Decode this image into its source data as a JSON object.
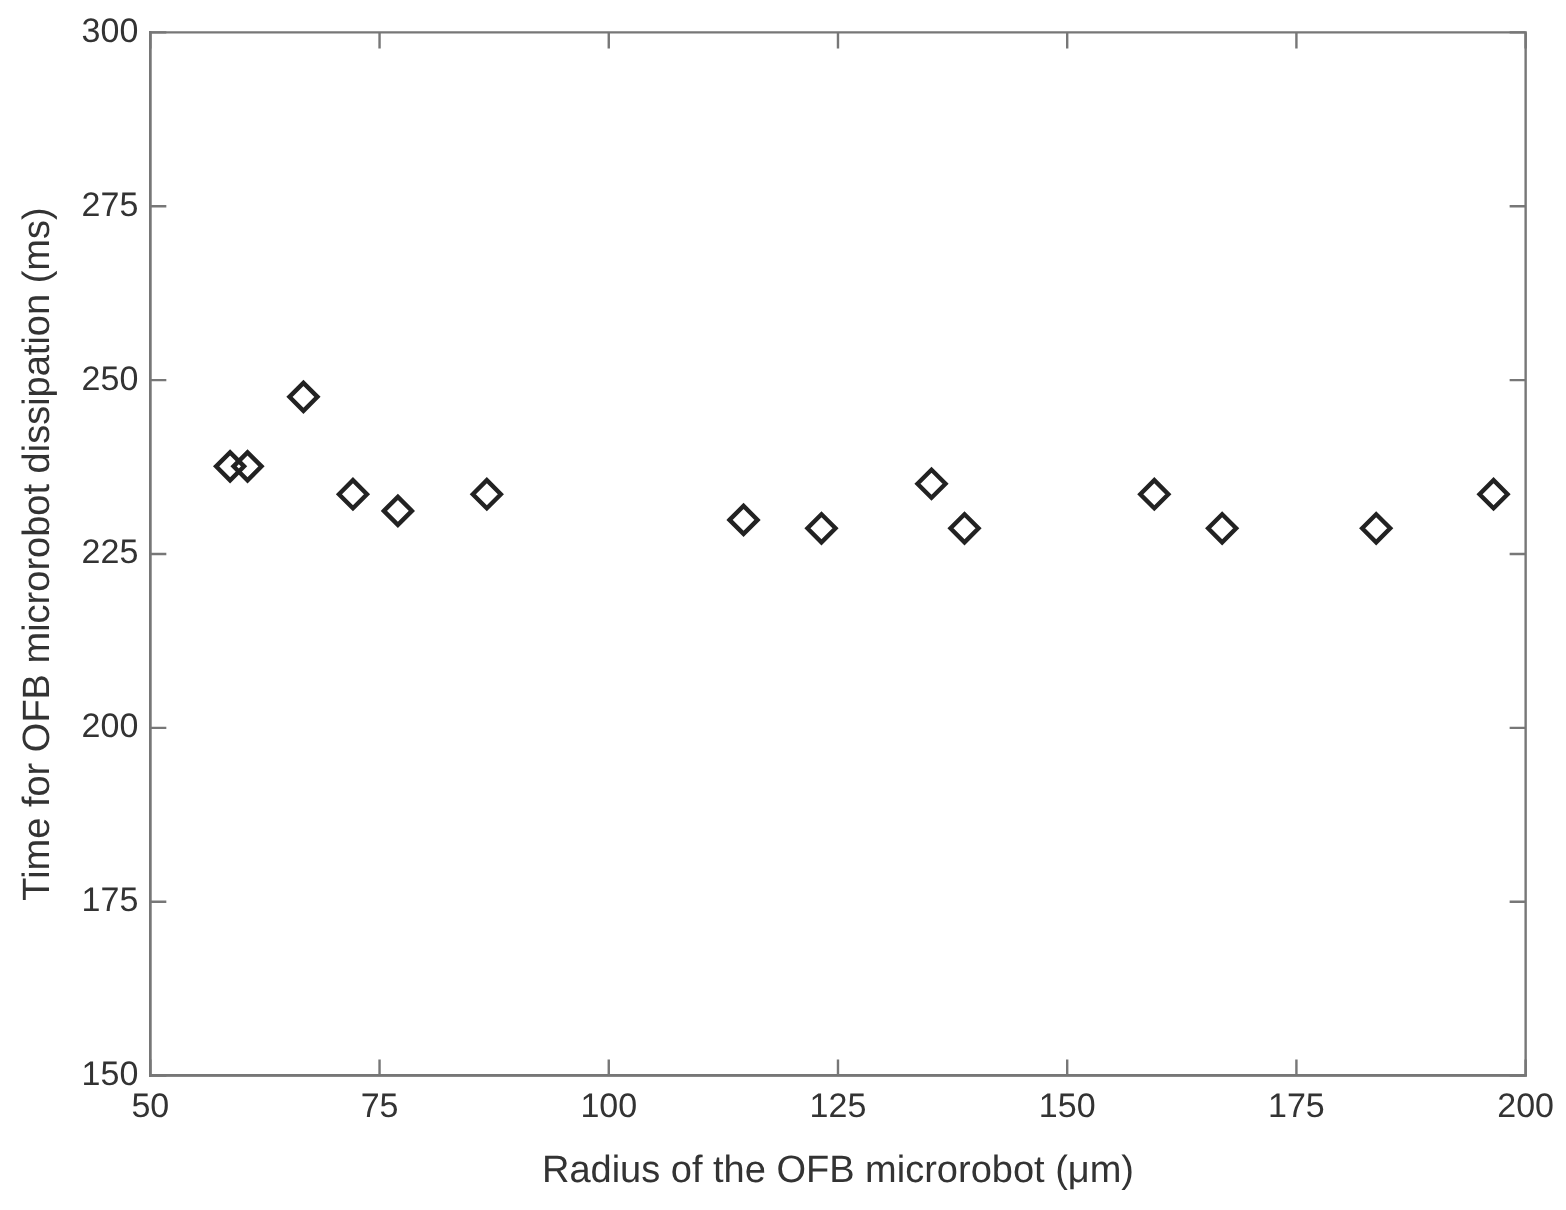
{
  "chart_data": {
    "type": "scatter",
    "xlabel": "Radius of the OFB microrobot (μm)",
    "ylabel": "Time for OFB microrobot dissipation (ms)",
    "x": [
      58.7,
      60.6,
      66.7,
      72.1,
      77.0,
      86.7,
      114.7,
      123.2,
      135.2,
      138.8,
      159.5,
      166.9,
      183.7,
      196.5
    ],
    "series": [
      {
        "color": "#222222",
        "values": [
          237.6,
          237.6,
          247.6,
          233.6,
          231.2,
          233.6,
          229.9,
          228.7,
          235.1,
          228.7,
          233.6,
          228.7,
          228.7,
          233.6
        ]
      }
    ],
    "xlim": [
      50,
      200
    ],
    "xticks": [
      50,
      75,
      100,
      125,
      150,
      175,
      200
    ],
    "ylim": [
      150,
      300
    ],
    "yticks": [
      150,
      175,
      200,
      225,
      250,
      275,
      300
    ],
    "marker": "diamond",
    "grid": false,
    "legend": false
  }
}
